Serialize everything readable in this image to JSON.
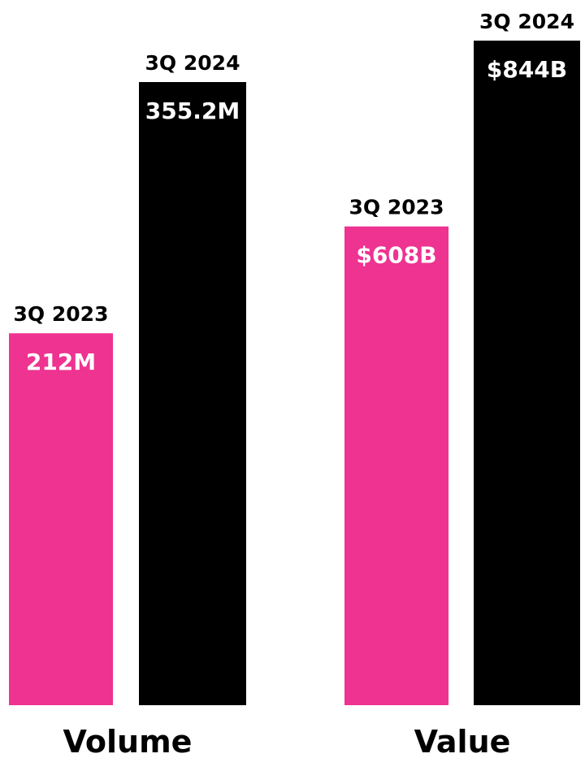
{
  "chart_data": [
    {
      "type": "bar",
      "title": "",
      "xlabel": "Volume",
      "ylabel": "",
      "categories": [
        "3Q 2023",
        "3Q 2024"
      ],
      "values": [
        212,
        355.2
      ],
      "unit": "M",
      "value_labels": [
        "212M",
        "355.2M"
      ],
      "colors": [
        "#ee3391",
        "#000000"
      ],
      "ylim": [
        0,
        400
      ]
    },
    {
      "type": "bar",
      "title": "",
      "xlabel": "Value",
      "ylabel": "",
      "categories": [
        "3Q 2023",
        "3Q 2024"
      ],
      "values": [
        608,
        844
      ],
      "unit": "$B",
      "value_labels": [
        "$608B",
        "$844B"
      ],
      "colors": [
        "#ee3391",
        "#000000"
      ],
      "ylim": [
        0,
        880
      ]
    }
  ]
}
